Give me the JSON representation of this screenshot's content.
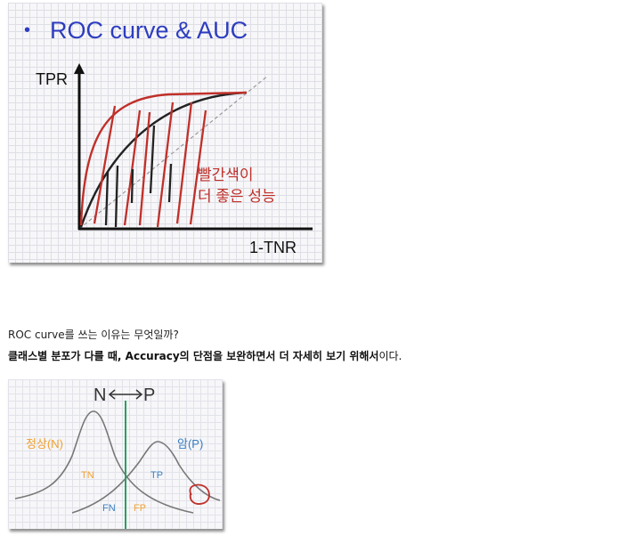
{
  "roc_slide": {
    "bullet": "•",
    "title": "ROC curve & AUC",
    "y_axis_label": "TPR",
    "x_axis_label": "1-TNR",
    "annotation_line1": "빨간색이",
    "annotation_line2": "더 좋은 성능",
    "colors": {
      "title": "#2d3dbf",
      "red_curve": "#c0302a",
      "black_curve": "#222222"
    }
  },
  "text": {
    "question": "ROC curve를 쓰는 이유는 무엇일까?",
    "answer_bold": "클래스별 분포가 다를 때, Accuracy의 단점을 보완하면서 더 자세히 보기 위해서",
    "answer_tail": "이다."
  },
  "dist_slide": {
    "arrow_label_left": "N",
    "arrow_label_right": "P",
    "negative_label": "정상(N)",
    "positive_label": "암(P)",
    "tn_label": "TN",
    "tp_label": "TP",
    "fn_label": "FN",
    "fp_label": "FP",
    "colors": {
      "negative": "#f0a030",
      "positive": "#3a7fc0",
      "threshold": "#2aa060"
    }
  }
}
